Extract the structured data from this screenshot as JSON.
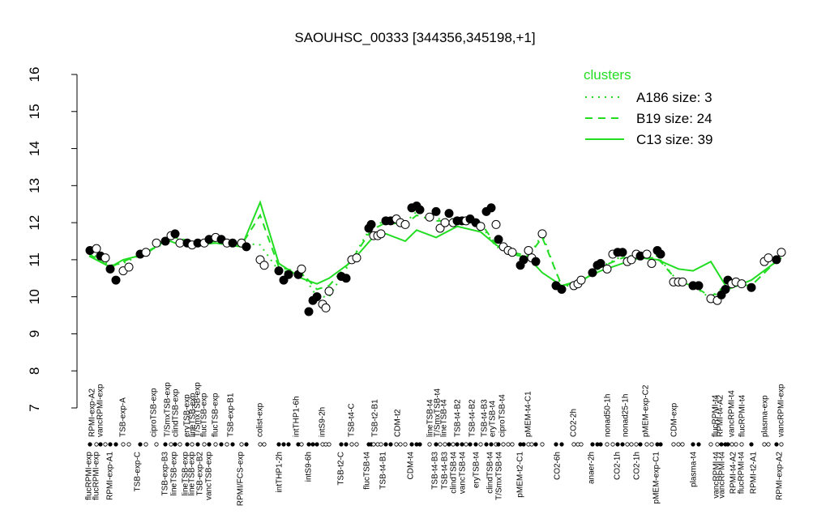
{
  "chart_data": {
    "type": "line",
    "title": "SAOUHSC_00333 [344356,345198,+1]",
    "xlim": [
      100,
      975
    ],
    "ylim": [
      7,
      16
    ],
    "yticks": [
      7,
      8,
      9,
      10,
      11,
      12,
      13,
      14,
      15,
      16
    ],
    "legend": {
      "title": "clusters",
      "position": "top-right"
    },
    "color": "#22dd22",
    "points": {
      "x": [
        111,
        119,
        124,
        130,
        136,
        143,
        152,
        159,
        173,
        180,
        193,
        204,
        211,
        216,
        222,
        231,
        237,
        244,
        252,
        258,
        266,
        273,
        280,
        287,
        298,
        304,
        321,
        326,
        344,
        350,
        356,
        368,
        372,
        381,
        386,
        391,
        398,
        402,
        406,
        421,
        427,
        434,
        440,
        455,
        458,
        461,
        466,
        470,
        476,
        482,
        489,
        494,
        500,
        508,
        514,
        518,
        530,
        538,
        543,
        549,
        554,
        559,
        564,
        570,
        575,
        580,
        587,
        593,
        600,
        606,
        612,
        615,
        621,
        627,
        632,
        642,
        646,
        652,
        656,
        661,
        669,
        686,
        693,
        708,
        713,
        717,
        731,
        737,
        741,
        749,
        756,
        762,
        768,
        774,
        779,
        785,
        790,
        798,
        804,
        811,
        815,
        831,
        837,
        842,
        855,
        862,
        877,
        885,
        890,
        895,
        898,
        903,
        908,
        915,
        927,
        943,
        948,
        958,
        964
      ],
      "values": [
        11.25,
        11.3,
        11.1,
        11.05,
        10.75,
        10.45,
        10.7,
        10.8,
        11.15,
        11.2,
        11.45,
        11.5,
        11.65,
        11.7,
        11.45,
        11.45,
        11.4,
        11.45,
        11.45,
        11.55,
        11.6,
        11.55,
        11.45,
        11.45,
        11.45,
        11.35,
        11.0,
        10.85,
        10.7,
        10.45,
        10.6,
        10.6,
        10.75,
        9.6,
        9.9,
        10.0,
        9.8,
        9.7,
        10.15,
        10.55,
        10.5,
        11.0,
        11.05,
        11.85,
        11.95,
        11.65,
        11.65,
        11.7,
        12.05,
        12.05,
        12.1,
        12.0,
        11.95,
        12.4,
        12.45,
        12.35,
        12.15,
        12.3,
        11.85,
        12.0,
        12.25,
        12.0,
        12.05,
        12.05,
        12.05,
        12.1,
        12.0,
        11.9,
        12.3,
        12.4,
        11.95,
        11.55,
        11.35,
        11.25,
        11.2,
        10.85,
        11.0,
        11.25,
        11.05,
        10.95,
        11.7,
        10.3,
        10.2,
        10.3,
        10.35,
        10.45,
        10.65,
        10.85,
        10.9,
        10.75,
        11.15,
        11.2,
        11.2,
        10.95,
        11.0,
        11.15,
        11.1,
        11.15,
        10.9,
        11.25,
        11.15,
        10.4,
        10.4,
        10.4,
        10.3,
        10.3,
        9.95,
        9.9,
        10.05,
        10.2,
        10.45,
        10.35,
        10.4,
        10.35,
        10.25,
        10.95,
        11.05,
        11.0,
        11.2
      ],
      "filled": [
        true,
        false,
        true,
        false,
        true,
        true,
        false,
        false,
        true,
        false,
        false,
        true,
        false,
        true,
        false,
        true,
        false,
        true,
        false,
        true,
        false,
        true,
        false,
        true,
        false,
        true,
        false,
        false,
        true,
        true,
        true,
        true,
        false,
        true,
        true,
        true,
        false,
        false,
        false,
        true,
        true,
        false,
        false,
        true,
        true,
        false,
        false,
        false,
        true,
        true,
        false,
        false,
        false,
        true,
        true,
        true,
        false,
        true,
        false,
        false,
        true,
        false,
        true,
        true,
        false,
        true,
        true,
        false,
        true,
        true,
        false,
        true,
        false,
        false,
        false,
        true,
        true,
        false,
        false,
        true,
        false,
        true,
        true,
        false,
        false,
        false,
        true,
        true,
        true,
        false,
        false,
        true,
        true,
        false,
        false,
        false,
        true,
        false,
        false,
        true,
        true,
        false,
        false,
        false,
        true,
        true,
        false,
        false,
        true,
        true,
        true,
        false,
        false,
        false,
        true,
        false,
        false,
        true,
        false
      ]
    },
    "line_x": [
      110,
      136,
      152,
      180,
      204,
      216,
      244,
      266,
      298,
      321,
      344,
      372,
      391,
      406,
      434,
      458,
      476,
      500,
      514,
      538,
      564,
      593,
      612,
      632,
      652,
      669,
      693,
      717,
      741,
      768,
      790,
      811,
      837,
      855,
      877,
      898,
      927,
      964
    ],
    "series": [
      {
        "name": "A186 size: 3",
        "dash": "dotted",
        "values": [
          11.2,
          10.85,
          10.9,
          11.2,
          11.45,
          11.6,
          11.4,
          11.5,
          11.45,
          11.4,
          10.7,
          10.65,
          10.0,
          10.0,
          11.0,
          11.9,
          12.05,
          12.0,
          12.3,
          12.1,
          12.1,
          11.95,
          11.35,
          11.2,
          11.05,
          11.7,
          10.25,
          10.4,
          10.8,
          11.1,
          11.1,
          11.1,
          10.4,
          10.3,
          9.95,
          10.35,
          10.3,
          11.1
        ]
      },
      {
        "name": "B19 size: 24",
        "dash": "dashed",
        "values": [
          11.15,
          10.8,
          10.95,
          11.2,
          11.5,
          11.6,
          11.45,
          11.5,
          11.4,
          12.2,
          10.8,
          10.65,
          10.2,
          10.3,
          11.0,
          11.8,
          12.0,
          11.95,
          12.2,
          12.05,
          12.05,
          12.0,
          11.4,
          11.2,
          11.1,
          11.6,
          10.3,
          10.4,
          10.8,
          11.05,
          11.05,
          11.05,
          10.4,
          10.3,
          10.0,
          10.35,
          10.3,
          11.1
        ]
      },
      {
        "name": "C13 size: 39",
        "dash": "solid",
        "values": [
          11.1,
          10.8,
          11.0,
          11.15,
          11.55,
          11.45,
          11.4,
          11.45,
          11.35,
          12.55,
          10.9,
          10.5,
          10.35,
          10.5,
          10.95,
          11.55,
          11.7,
          11.5,
          11.8,
          11.6,
          11.9,
          11.75,
          11.4,
          11.15,
          11.05,
          10.65,
          10.3,
          10.45,
          10.7,
          10.9,
          11.05,
          11.0,
          10.75,
          10.7,
          10.95,
          10.2,
          10.45,
          11.05
        ]
      }
    ],
    "top_labels": [
      {
        "x": 114,
        "label": "RPMI-exp-A2"
      },
      {
        "x": 124,
        "label": "vancRPMI-exp"
      },
      {
        "x": 152,
        "label": "TSB-exp-A"
      },
      {
        "x": 190,
        "label": "ciproTSB-exp"
      },
      {
        "x": 207,
        "label": "T/SmxTSB-exp"
      },
      {
        "x": 217,
        "label": "clindTSB-exp"
      },
      {
        "x": 231,
        "label": "eryTSB-exp"
      },
      {
        "x": 238,
        "label": "lineTSB-exp"
      },
      {
        "x": 244,
        "label": "T/SmxTSB-exp"
      },
      {
        "x": 252,
        "label": "flucTSB-exp"
      },
      {
        "x": 266,
        "label": "flucTSB-exp"
      },
      {
        "x": 285,
        "label": "TSB-exp-B1"
      },
      {
        "x": 321,
        "label": "colist-exp"
      },
      {
        "x": 366,
        "label": "intTHP1-6h"
      },
      {
        "x": 398,
        "label": "intS9-2h"
      },
      {
        "x": 434,
        "label": "TSB-t4-C"
      },
      {
        "x": 463,
        "label": "TSB-t2-B1"
      },
      {
        "x": 491,
        "label": "CDM-t2"
      },
      {
        "x": 531,
        "label": "lineTSB-t4"
      },
      {
        "x": 540,
        "label": "T/SmxTSB-t4"
      },
      {
        "x": 548,
        "label": "lineTSB-t4"
      },
      {
        "x": 565,
        "label": "TSB-t4-B2"
      },
      {
        "x": 583,
        "label": "TSB-t4-B2"
      },
      {
        "x": 598,
        "label": "TSB-t4-B3"
      },
      {
        "x": 608,
        "label": "eryTSB-t4"
      },
      {
        "x": 620,
        "label": "ciproTSB-t4"
      },
      {
        "x": 652,
        "label": "pMEM-t4-C1"
      },
      {
        "x": 708,
        "label": "CO2-2h"
      },
      {
        "x": 750,
        "label": "nonad50-1h"
      },
      {
        "x": 772,
        "label": "nonad25-1h"
      },
      {
        "x": 797,
        "label": "pMEM-exp-C2"
      },
      {
        "x": 832,
        "label": "CDM-exp"
      },
      {
        "x": 883,
        "label": "flucRPMI-t4"
      },
      {
        "x": 889,
        "label": "RPMI-t4-A2"
      },
      {
        "x": 903,
        "label": "vancRPMI-t4"
      },
      {
        "x": 916,
        "label": "flucRPMI-t4"
      },
      {
        "x": 944,
        "label": "plasma-exp"
      },
      {
        "x": 964,
        "label": "vancRPMI-exp"
      }
    ],
    "bottom_labels": [
      {
        "x": 110,
        "label": "flucRPMI-exp"
      },
      {
        "x": 119,
        "label": "flucRPMI-exp"
      },
      {
        "x": 136,
        "label": "RPMI-exp-A1"
      },
      {
        "x": 170,
        "label": "TSB-exp-C"
      },
      {
        "x": 204,
        "label": "TSB-exp-B3"
      },
      {
        "x": 215,
        "label": "lineTSB-exp"
      },
      {
        "x": 229,
        "label": "lineTSB-exp"
      },
      {
        "x": 237,
        "label": "lineTSB-exp"
      },
      {
        "x": 247,
        "label": "TSB-exp-B2"
      },
      {
        "x": 258,
        "label": "vancTSB-exp"
      },
      {
        "x": 297,
        "label": "RPMI/FCS-exp"
      },
      {
        "x": 345,
        "label": "intTHP1-2h"
      },
      {
        "x": 381,
        "label": "intS9-6h"
      },
      {
        "x": 421,
        "label": "TSB-t2-C"
      },
      {
        "x": 453,
        "label": "flucTSB-t4"
      },
      {
        "x": 473,
        "label": "TSB-t4-B1"
      },
      {
        "x": 507,
        "label": "CDM-t4"
      },
      {
        "x": 537,
        "label": "TSB-t4-B3"
      },
      {
        "x": 549,
        "label": "TSB-t4-B3"
      },
      {
        "x": 560,
        "label": "clindTSB-t4"
      },
      {
        "x": 571,
        "label": "vancTSB-t4"
      },
      {
        "x": 588,
        "label": "eryTSB-t4"
      },
      {
        "x": 605,
        "label": "clindTSB-t4"
      },
      {
        "x": 616,
        "label": "T/SmxTSB-t4"
      },
      {
        "x": 642,
        "label": "pMEM-t2-C1"
      },
      {
        "x": 688,
        "label": "CO2-6h"
      },
      {
        "x": 730,
        "label": "anaer-2h"
      },
      {
        "x": 762,
        "label": "CO2-1h"
      },
      {
        "x": 786,
        "label": "CO2-1h"
      },
      {
        "x": 810,
        "label": "pMEM-exp-C1"
      },
      {
        "x": 856,
        "label": "plasma-t4"
      },
      {
        "x": 884,
        "label": "vancRPMI-t4"
      },
      {
        "x": 891,
        "label": "vancRPMI-t4"
      },
      {
        "x": 905,
        "label": "RPMI-t4-A2"
      },
      {
        "x": 915,
        "label": "flucRPMI-t4"
      },
      {
        "x": 930,
        "label": "RPMI-t2-A1"
      },
      {
        "x": 962,
        "label": "RPMI-exp-A2"
      }
    ]
  }
}
